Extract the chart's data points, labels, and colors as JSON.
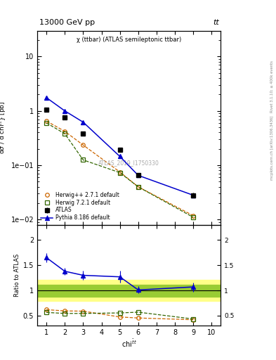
{
  "title_left": "13000 GeV pp",
  "title_right": "tt",
  "plot_title": "χ (ttbar) (ATLAS semileptonic ttbar)",
  "watermark": "ATLAS_2019_I1750330",
  "right_label1": "Rivet 3.1.10; ≥ 400k events",
  "right_label2": "mcplots.cern.ch [arXiv:1306.3436]",
  "atlas_x": [
    1.0,
    2.0,
    3.0,
    5.0,
    6.0,
    9.0
  ],
  "atlas_y": [
    1.05,
    0.75,
    0.38,
    0.19,
    0.065,
    0.028
  ],
  "atlas_yerr": [
    0.05,
    0.04,
    0.02,
    0.015,
    0.005,
    0.003
  ],
  "herwig_x": [
    1.0,
    2.0,
    3.0,
    5.0,
    6.0,
    9.0
  ],
  "herwig_y": [
    0.65,
    0.42,
    0.235,
    0.075,
    0.04,
    0.0118
  ],
  "herwig7_x": [
    1.0,
    2.0,
    3.0,
    5.0,
    6.0,
    9.0
  ],
  "herwig7_y": [
    0.6,
    0.38,
    0.125,
    0.073,
    0.04,
    0.011
  ],
  "pythia_x": [
    1.0,
    2.0,
    3.0,
    5.0,
    6.0,
    9.0
  ],
  "pythia_y": [
    1.75,
    1.0,
    0.62,
    0.145,
    0.065,
    0.028
  ],
  "pythia_yerr": [
    0.06,
    0.04,
    0.03,
    0.008,
    0.004,
    0.002
  ],
  "ratio_herwig_y": [
    0.62,
    0.595,
    0.59,
    0.475,
    0.455,
    0.42
  ],
  "ratio_herwig7_y": [
    0.565,
    0.545,
    0.545,
    0.555,
    0.57,
    0.435
  ],
  "ratio_pythia_y": [
    1.65,
    1.38,
    1.3,
    1.27,
    1.01,
    1.07
  ],
  "ratio_pythia_yerr": [
    0.09,
    0.07,
    0.09,
    0.12,
    0.07,
    0.09
  ],
  "band_yellow_lo": 0.79,
  "band_yellow_hi": 1.21,
  "band_green_lo": 0.875,
  "band_green_hi": 1.11,
  "xlim": [
    0.5,
    10.5
  ],
  "ylim_main": [
    0.008,
    30.0
  ],
  "ylim_ratio": [
    0.3,
    2.3
  ],
  "ratio_yticks": [
    0.5,
    1.0,
    1.5,
    2.0
  ],
  "color_atlas": "#000000",
  "color_herwig": "#cc6600",
  "color_herwig7": "#336600",
  "color_pythia": "#0000cc",
  "color_yellow": "#ffff88",
  "color_green": "#99cc33"
}
